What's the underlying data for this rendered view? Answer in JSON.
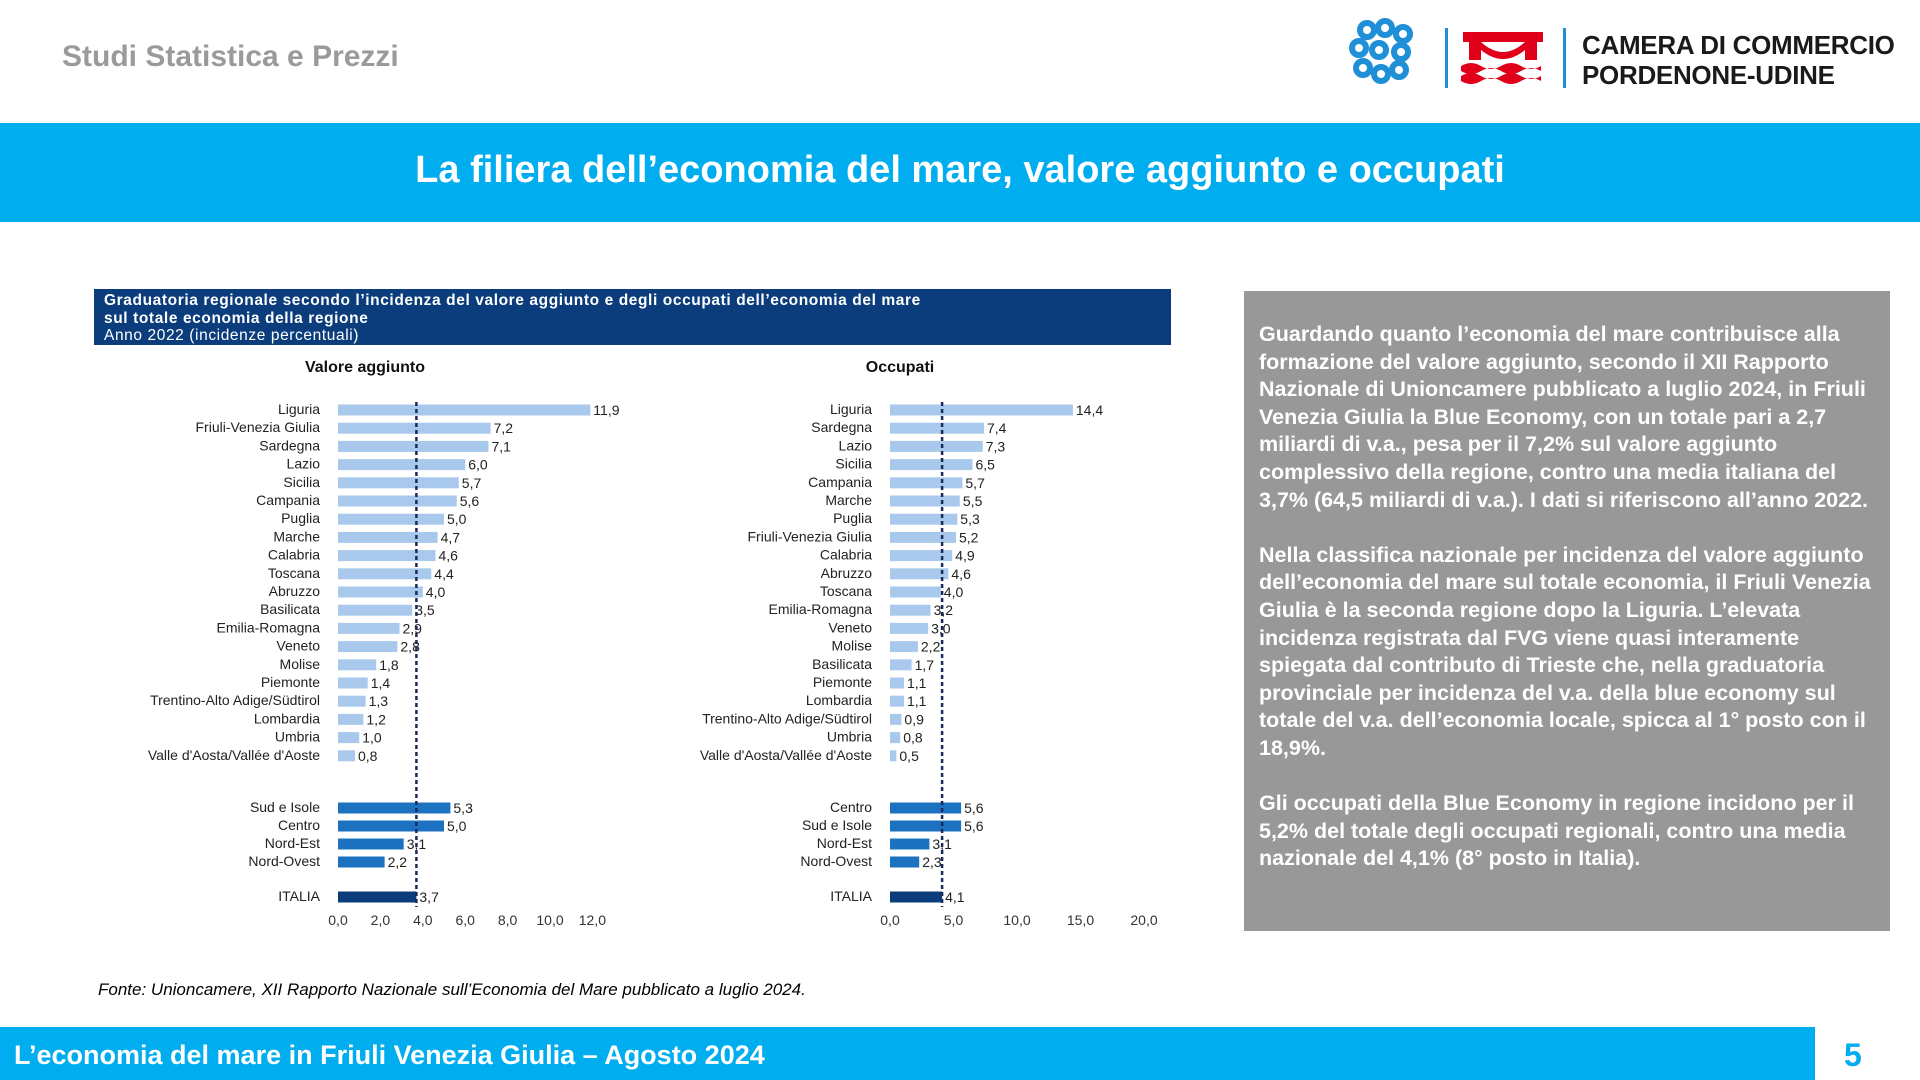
{
  "header": {
    "left_title": "Studi Statistica e Prezzi",
    "logo_line1": "CAMERA DI COMMERCIO",
    "logo_line2": "PORDENONE-UDINE"
  },
  "title": "La filiera dell’economia del mare, valore aggiunto e occupati",
  "chart_box": {
    "title_line1": "Graduatoria regionale secondo l’incidenza del valore aggiunto e degli occupati dell’economia del mare",
    "title_line2": "sul totale economia della regione",
    "subtitle": "Anno 2022 (incidenze percentuali)"
  },
  "colors": {
    "region_bar": "#a9c9ec",
    "macro_bar": "#1d71c1",
    "italy_bar": "#0b3d7c",
    "band": "#00adee",
    "text_box": "#989898"
  },
  "chart_data": [
    {
      "type": "bar",
      "orientation": "horizontal",
      "title": "Valore aggiunto",
      "categories": [
        "Liguria",
        "Friuli-Venezia Giulia",
        "Sardegna",
        "Lazio",
        "Sicilia",
        "Campania",
        "Puglia",
        "Marche",
        "Calabria",
        "Toscana",
        "Abruzzo",
        "Basilicata",
        "Emilia-Romagna",
        "Veneto",
        "Molise",
        "Piemonte",
        "Trentino-Alto Adige/Südtirol",
        "Lombardia",
        "Umbria",
        "Valle d'Aosta/Vallée d'Aoste",
        "Sud e Isole",
        "Centro",
        "Nord-Est",
        "Nord-Ovest",
        "ITALIA"
      ],
      "values": [
        11.9,
        7.2,
        7.1,
        6.0,
        5.7,
        5.6,
        5.0,
        4.7,
        4.6,
        4.4,
        4.0,
        3.5,
        2.9,
        2.8,
        1.8,
        1.4,
        1.3,
        1.2,
        1.0,
        0.8,
        5.3,
        5.0,
        3.1,
        2.2,
        3.7
      ],
      "value_labels": [
        "11,9",
        "7,2",
        "7,1",
        "6,0",
        "5,7",
        "5,6",
        "5,0",
        "4,7",
        "4,6",
        "4,4",
        "4,0",
        "3,5",
        "2,9",
        "2,8",
        "1,8",
        "1,4",
        "1,3",
        "1,2",
        "1,0",
        "0,8",
        "5,3",
        "5,0",
        "3,1",
        "2,2",
        "3,7"
      ],
      "x_ticks": [
        "0,0",
        "2,0",
        "4,0",
        "6,0",
        "8,0",
        "10,0",
        "12,0"
      ],
      "xlim": [
        0,
        12
      ],
      "reference_line": 3.7
    },
    {
      "type": "bar",
      "orientation": "horizontal",
      "title": "Occupati",
      "categories": [
        "Liguria",
        "Sardegna",
        "Lazio",
        "Sicilia",
        "Campania",
        "Marche",
        "Puglia",
        "Friuli-Venezia Giulia",
        "Calabria",
        "Abruzzo",
        "Toscana",
        "Emilia-Romagna",
        "Veneto",
        "Molise",
        "Basilicata",
        "Piemonte",
        "Lombardia",
        "Trentino-Alto Adige/Südtirol",
        "Umbria",
        "Valle d'Aosta/Vallée d'Aoste",
        "Centro",
        "Sud e Isole",
        "Nord-Est",
        "Nord-Ovest",
        "ITALIA"
      ],
      "values": [
        14.4,
        7.4,
        7.3,
        6.5,
        5.7,
        5.5,
        5.3,
        5.2,
        4.9,
        4.6,
        4.0,
        3.2,
        3.0,
        2.2,
        1.7,
        1.1,
        1.1,
        0.9,
        0.8,
        0.5,
        5.6,
        5.6,
        3.1,
        2.3,
        4.1
      ],
      "value_labels": [
        "14,4",
        "7,4",
        "7,3",
        "6,5",
        "5,7",
        "5,5",
        "5,3",
        "5,2",
        "4,9",
        "4,6",
        "4,0",
        "3,2",
        "3,0",
        "2,2",
        "1,7",
        "1,1",
        "1,1",
        "0,9",
        "0,8",
        "0,5",
        "5,6",
        "5,6",
        "3,1",
        "2,3",
        "4,1"
      ],
      "x_ticks": [
        "0,0",
        "5,0",
        "10,0",
        "15,0",
        "20,0"
      ],
      "xlim": [
        0,
        20
      ],
      "reference_line": 4.1
    }
  ],
  "text_box": {
    "p1": "Guardando quanto l’economia del mare contribuisce alla formazione del valore aggiunto, secondo il XII Rapporto Nazionale di Unioncamere pubblicato a luglio 2024, in Friuli Venezia Giulia la Blue Economy, con un totale pari a 2,7 miliardi di v.a., pesa per il 7,2% sul valore aggiunto complessivo della regione, contro una media italiana del 3,7% (64,5 miliardi di v.a.). I dati si riferiscono all’anno 2022.",
    "p2": "Nella classifica nazionale per incidenza del valore aggiunto dell’economia del mare sul totale economia, il Friuli Venezia Giulia è la seconda regione dopo la Liguria. L’elevata incidenza registrata dal FVG viene quasi interamente spiegata dal contributo di Trieste che, nella graduatoria provinciale per incidenza del v.a. della blue economy sul totale del v.a. dell’economia locale, spicca al 1° posto con il 18,9%.",
    "p3": "Gli occupati della Blue Economy in regione incidono per il 5,2% del totale degli occupati regionali, contro una media nazionale del 4,1% (8° posto in Italia)."
  },
  "source": "Fonte: Unioncamere, XII Rapporto Nazionale sull’Economia del Mare pubblicato a luglio 2024.",
  "footer": {
    "text": "L’economia del mare in Friuli Venezia Giulia – Agosto 2024",
    "page": "5"
  }
}
